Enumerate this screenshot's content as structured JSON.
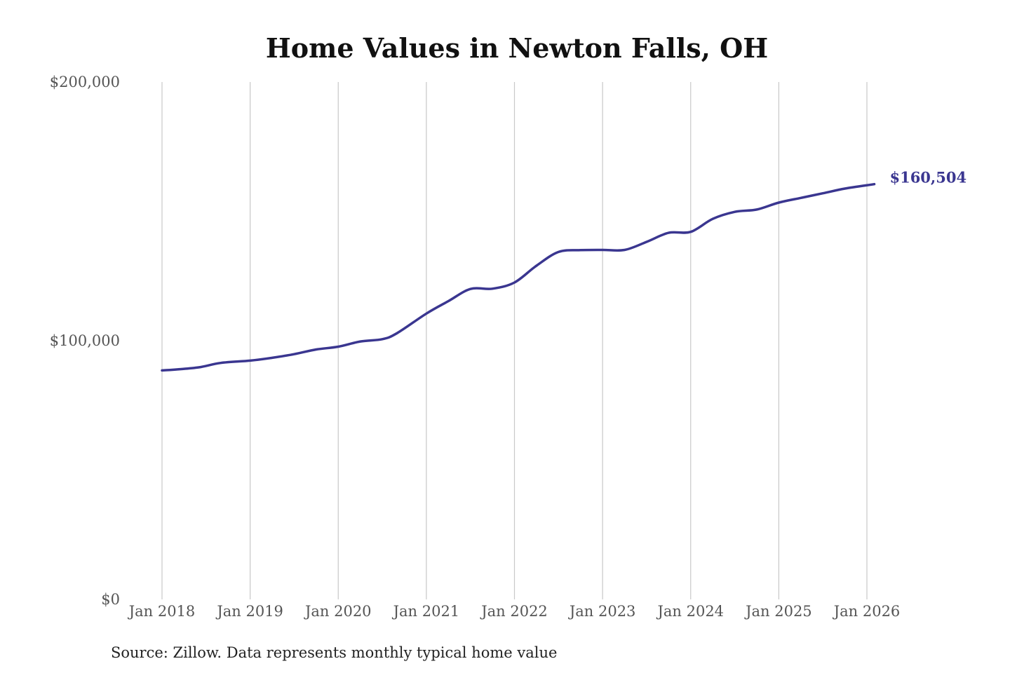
{
  "chart_data": {
    "type": "line",
    "title": "Home Values in Newton Falls, OH",
    "xlabel": "",
    "ylabel": "",
    "x_range": [
      "2018-01",
      "2026-01"
    ],
    "ylim": [
      0,
      200000
    ],
    "y_ticks": [
      {
        "value": 0,
        "label": "$0"
      },
      {
        "value": 100000,
        "label": "$100,000"
      },
      {
        "value": 200000,
        "label": "$200,000"
      }
    ],
    "x_ticks": [
      {
        "date": "2018-01",
        "label": "Jan 2018"
      },
      {
        "date": "2019-01",
        "label": "Jan 2019"
      },
      {
        "date": "2020-01",
        "label": "Jan 2020"
      },
      {
        "date": "2021-01",
        "label": "Jan 2021"
      },
      {
        "date": "2022-01",
        "label": "Jan 2022"
      },
      {
        "date": "2023-01",
        "label": "Jan 2023"
      },
      {
        "date": "2024-01",
        "label": "Jan 2024"
      },
      {
        "date": "2025-01",
        "label": "Jan 2025"
      },
      {
        "date": "2026-01",
        "label": "Jan 2026"
      }
    ],
    "grid": "vertical",
    "legend": "none",
    "series": [
      {
        "color": "#3a3690",
        "end_label": "$160,504",
        "points": [
          [
            "2018-01",
            88500
          ],
          [
            "2018-03",
            88900
          ],
          [
            "2018-06",
            89700
          ],
          [
            "2018-09",
            91400
          ],
          [
            "2019-01",
            92300
          ],
          [
            "2019-04",
            93400
          ],
          [
            "2019-07",
            94800
          ],
          [
            "2019-10",
            96600
          ],
          [
            "2020-01",
            97700
          ],
          [
            "2020-04",
            99700
          ],
          [
            "2020-07",
            100600
          ],
          [
            "2020-09",
            102900
          ],
          [
            "2021-01",
            110500
          ],
          [
            "2021-04",
            115300
          ],
          [
            "2021-07",
            120000
          ],
          [
            "2021-10",
            120100
          ],
          [
            "2022-01",
            122500
          ],
          [
            "2022-04",
            129000
          ],
          [
            "2022-07",
            134300
          ],
          [
            "2022-10",
            135000
          ],
          [
            "2023-01",
            135100
          ],
          [
            "2023-04",
            135100
          ],
          [
            "2023-07",
            138200
          ],
          [
            "2023-10",
            141700
          ],
          [
            "2024-01",
            142100
          ],
          [
            "2024-04",
            147100
          ],
          [
            "2024-07",
            149800
          ],
          [
            "2024-10",
            150700
          ],
          [
            "2025-01",
            153400
          ],
          [
            "2025-04",
            155200
          ],
          [
            "2025-07",
            157000
          ],
          [
            "2025-10",
            158800
          ],
          [
            "2026-02",
            160504
          ]
        ]
      }
    ]
  },
  "source_note": "Source: Zillow. Data represents monthly typical home value"
}
